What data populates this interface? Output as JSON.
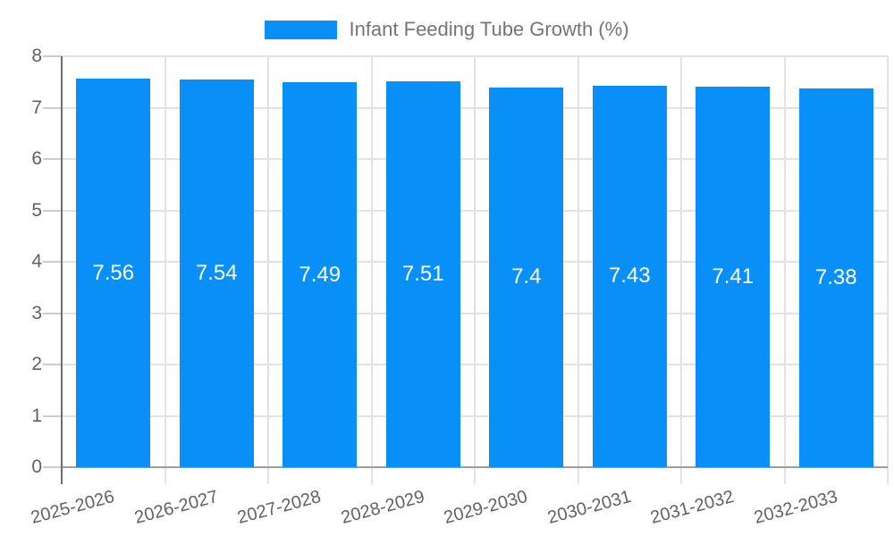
{
  "chart_data": {
    "type": "bar",
    "title": "Infant Feeding Tube Growth (%)",
    "categories": [
      "2025-2026",
      "2026-2027",
      "2027-2028",
      "2028-2029",
      "2029-2030",
      "2030-2031",
      "2031-2032",
      "2032-2033"
    ],
    "values": [
      7.56,
      7.54,
      7.49,
      7.51,
      7.4,
      7.43,
      7.41,
      7.38
    ],
    "value_labels": [
      "7.56",
      "7.54",
      "7.49",
      "7.51",
      "7.4",
      "7.43",
      "7.41",
      "7.38"
    ],
    "xlabel": "",
    "ylabel": "",
    "ylim": [
      0,
      8
    ],
    "ytick_step": 1,
    "ytick_labels": [
      "0",
      "1",
      "2",
      "3",
      "4",
      "5",
      "6",
      "7",
      "8"
    ],
    "grid": true,
    "legend_position": "top",
    "x_label_rotation_deg": -15,
    "colors": {
      "bar": "#0990f8",
      "value_label": "#ffffff",
      "gridline": "#e2e2e2",
      "tick": "#cccccc",
      "baseline": "#9e9e9e",
      "axis_line": "#6e6e6e",
      "axis_text": "#616161",
      "legend_text": "#757575"
    }
  },
  "legend": {
    "label": "Infant Feeding Tube Growth (%)"
  }
}
